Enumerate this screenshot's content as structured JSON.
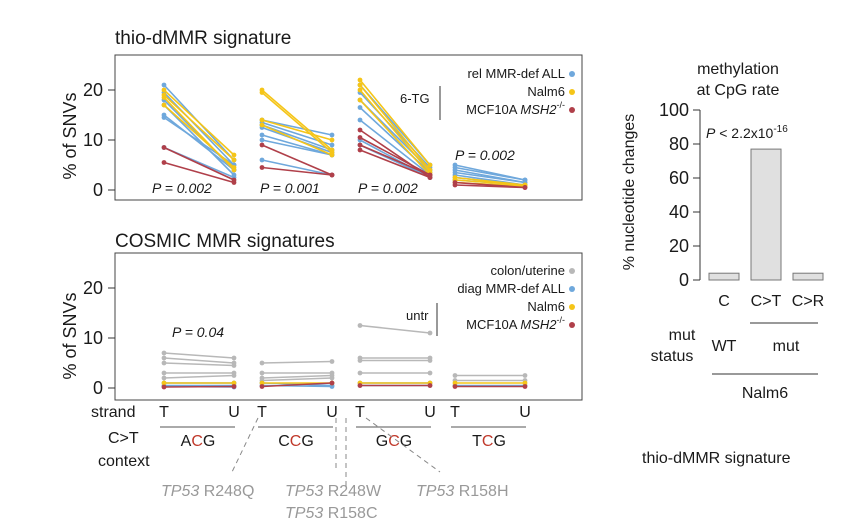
{
  "colors": {
    "blue": "#6fa8dc",
    "yellow": "#f5c518",
    "red": "#b0404a",
    "gray": "#b8b8b8",
    "bar_fill": "#e0e0e0",
    "accent_red": "#c0392b"
  },
  "chart_data": [
    {
      "type": "line",
      "title": "thio-dMMR signature",
      "ylabel": "% of SNVs",
      "yticks": [
        "0",
        "10",
        "20"
      ],
      "ylim": [
        0,
        24
      ],
      "x_categories": [
        "ACG-T",
        "ACG-U",
        "CCG-T",
        "CCG-U",
        "GCG-T",
        "GCG-U",
        "TCG-T",
        "TCG-U"
      ],
      "legend": [
        {
          "label": "rel MMR-def ALL",
          "color": "blue"
        },
        {
          "label": "Nalm6",
          "color": "yellow"
        },
        {
          "label": "MCF10A",
          "label_italic": "MSH2",
          "label_sup": "-/-",
          "color": "red"
        }
      ],
      "legend_group_label": "6-TG",
      "pvalues": [
        {
          "context": "ACG",
          "text": "P = 0.002"
        },
        {
          "context": "CCG",
          "text": "P = 0.001"
        },
        {
          "context": "GCG",
          "text": "P = 0.002"
        },
        {
          "context": "TCG",
          "text": "P = 0.002"
        }
      ],
      "series": [
        {
          "group": "blue",
          "values": [
            [
              21,
              6
            ],
            [
              19.5,
              5
            ],
            [
              18,
              4
            ],
            [
              17,
              3
            ],
            [
              15,
              4
            ],
            [
              14.5,
              5
            ],
            [
              8.5,
              2.5
            ]
          ]
        },
        {
          "group": "yellow",
          "values": [
            [
              20,
              7
            ],
            [
              19,
              6
            ],
            [
              18.5,
              4
            ],
            [
              17,
              4.5
            ]
          ]
        },
        {
          "group": "red",
          "values": [
            [
              8.5,
              2
            ],
            [
              5.5,
              1.5
            ]
          ]
        },
        {
          "group": "blue",
          "values": [
            [
              14,
              11
            ],
            [
              13.5,
              9
            ],
            [
              13,
              8
            ],
            [
              12.5,
              7.5
            ],
            [
              11,
              7
            ],
            [
              10,
              7
            ],
            [
              6,
              3
            ]
          ]
        },
        {
          "group": "yellow",
          "values": [
            [
              20,
              8
            ],
            [
              19.5,
              7.5
            ],
            [
              14,
              10
            ],
            [
              13,
              7
            ]
          ]
        },
        {
          "group": "red",
          "values": [
            [
              9,
              3
            ],
            [
              4.5,
              3
            ]
          ]
        },
        {
          "group": "blue",
          "values": [
            [
              21,
              5
            ],
            [
              19.5,
              4.5
            ],
            [
              18,
              4
            ],
            [
              16.5,
              3.5
            ],
            [
              14,
              3
            ],
            [
              10,
              2.5
            ],
            [
              9,
              2.5
            ]
          ]
        },
        {
          "group": "yellow",
          "values": [
            [
              22,
              5
            ],
            [
              21,
              4
            ],
            [
              20,
              3.5
            ],
            [
              18,
              3
            ]
          ]
        },
        {
          "group": "red",
          "values": [
            [
              12,
              2.5
            ],
            [
              10.5,
              3
            ],
            [
              9,
              3
            ],
            [
              8,
              2.5
            ]
          ]
        },
        {
          "group": "blue",
          "values": [
            [
              5,
              2
            ],
            [
              4.5,
              2
            ],
            [
              4,
              1.5
            ],
            [
              3.5,
              1.5
            ],
            [
              3,
              1
            ],
            [
              2.5,
              1
            ],
            [
              2,
              1
            ]
          ]
        },
        {
          "group": "yellow",
          "values": [
            [
              2.5,
              1
            ],
            [
              2,
              1
            ],
            [
              1.5,
              0.8
            ]
          ]
        },
        {
          "group": "red",
          "values": [
            [
              1.5,
              0.5
            ],
            [
              1,
              0.5
            ]
          ]
        }
      ]
    },
    {
      "type": "line",
      "title": "COSMIC MMR signatures",
      "ylabel": "% of SNVs",
      "yticks": [
        "0",
        "10",
        "20"
      ],
      "ylim": [
        0,
        24
      ],
      "x_categories": [
        "ACG-T",
        "ACG-U",
        "CCG-T",
        "CCG-U",
        "GCG-T",
        "GCG-U",
        "TCG-T",
        "TCG-U"
      ],
      "legend": [
        {
          "label": "colon/uterine",
          "color": "gray"
        },
        {
          "label": "diag MMR-def ALL",
          "color": "blue"
        },
        {
          "label": "Nalm6",
          "color": "yellow"
        },
        {
          "label": "MCF10A",
          "label_italic": "MSH2",
          "label_sup": "-/-",
          "color": "red"
        }
      ],
      "legend_group_label": "untr",
      "pvalues": [
        {
          "context": "ACG",
          "text": "P = 0.04"
        }
      ],
      "series": [
        {
          "group": "gray",
          "values": [
            [
              7,
              6
            ],
            [
              6,
              5
            ],
            [
              5,
              4.5
            ],
            [
              3,
              3
            ],
            [
              2,
              2.5
            ]
          ]
        },
        {
          "group": "blue",
          "values": [
            [
              1,
              1
            ],
            [
              0.5,
              0.5
            ],
            [
              0.3,
              0.2
            ]
          ]
        },
        {
          "group": "yellow",
          "values": [
            [
              1,
              1
            ]
          ]
        },
        {
          "group": "red",
          "values": [
            [
              0.2,
              0.3
            ]
          ]
        },
        {
          "group": "gray",
          "values": [
            [
              5,
              5.3
            ],
            [
              3,
              3
            ],
            [
              2,
              2.5
            ],
            [
              1.5,
              2
            ]
          ]
        },
        {
          "group": "blue",
          "values": [
            [
              1,
              0.5
            ],
            [
              0.5,
              0.3
            ]
          ]
        },
        {
          "group": "yellow",
          "values": [
            [
              1,
              1
            ]
          ]
        },
        {
          "group": "red",
          "values": [
            [
              0.3,
              1
            ]
          ]
        },
        {
          "group": "gray",
          "values": [
            [
              12.5,
              11
            ],
            [
              6,
              6
            ],
            [
              5.5,
              5.5
            ],
            [
              3,
              3
            ]
          ]
        },
        {
          "group": "blue",
          "values": [
            [
              1,
              1
            ],
            [
              0.5,
              0.5
            ]
          ]
        },
        {
          "group": "yellow",
          "values": [
            [
              1,
              1
            ]
          ]
        },
        {
          "group": "red",
          "values": [
            [
              0.5,
              0.5
            ]
          ]
        },
        {
          "group": "gray",
          "values": [
            [
              2.5,
              2.5
            ],
            [
              1.5,
              1.5
            ]
          ]
        },
        {
          "group": "blue",
          "values": [
            [
              0.5,
              0.5
            ]
          ]
        },
        {
          "group": "yellow",
          "values": [
            [
              1,
              1
            ]
          ]
        },
        {
          "group": "red",
          "values": [
            [
              0.3,
              0.3
            ]
          ]
        }
      ]
    },
    {
      "type": "bar",
      "title_line1": "methylation",
      "title_line2": "at CpG rate",
      "ylabel": "% nucleotide changes",
      "yticks": [
        "0",
        "20",
        "40",
        "60",
        "80",
        "100"
      ],
      "ylim": [
        0,
        100
      ],
      "categories": [
        "C",
        "C>T",
        "C>R"
      ],
      "values": [
        4,
        77,
        4
      ],
      "pvalue_text": "P < 2.2x10",
      "pvalue_exp": "-16",
      "mut_status_label_line1": "mut",
      "mut_status_label_line2": "status",
      "status_wt": "WT",
      "status_mut": "mut",
      "cell_line": "Nalm6"
    }
  ],
  "strand_label": "strand",
  "context_label_ct": "C>T",
  "context_label": "context",
  "strand_letters": [
    "T",
    "U",
    "T",
    "U",
    "T",
    "U",
    "T",
    "U"
  ],
  "contexts": [
    {
      "pre": "A",
      "mid": "C",
      "post": "G"
    },
    {
      "pre": "C",
      "mid": "C",
      "post": "G"
    },
    {
      "pre": "G",
      "mid": "C",
      "post": "G"
    },
    {
      "pre": "T",
      "mid": "C",
      "post": "G"
    }
  ],
  "mutation_labels": [
    {
      "gene": "TP53",
      "change": "R248Q"
    },
    {
      "gene": "TP53",
      "change": "R248W"
    },
    {
      "gene": "TP53",
      "change": "R158H"
    },
    {
      "gene": "TP53",
      "change": "R158C"
    }
  ],
  "footer_caption": "thio-dMMR signature"
}
